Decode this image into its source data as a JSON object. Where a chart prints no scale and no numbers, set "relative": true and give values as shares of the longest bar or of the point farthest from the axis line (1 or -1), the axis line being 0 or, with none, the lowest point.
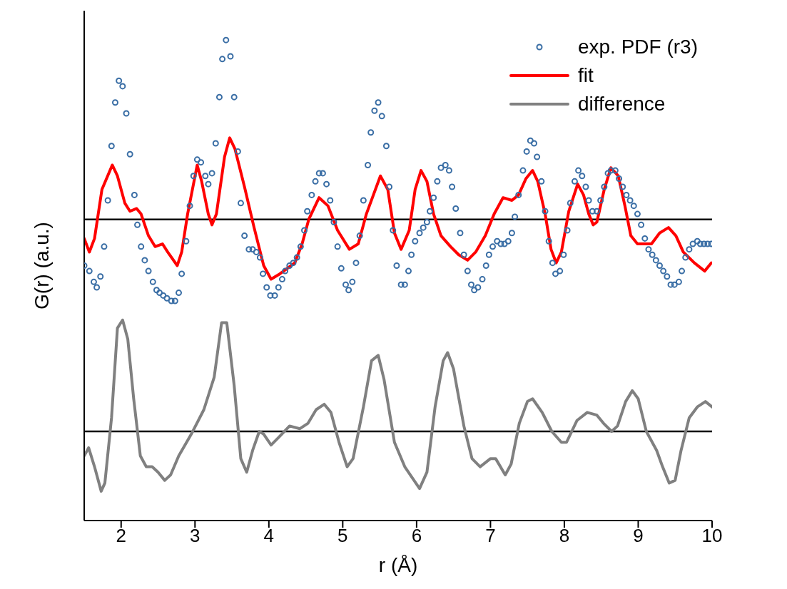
{
  "chart_data": {
    "type": "scatter",
    "relative": true,
    "xlabel": "r (Å)",
    "ylabel": "G(r) (a.u.)",
    "legend": "top right",
    "xlim": [
      1.5,
      10
    ],
    "xticks": [
      2,
      3,
      4,
      5,
      6,
      7,
      8,
      9,
      10
    ],
    "ref_lines": [
      {
        "axis": "y",
        "value": 0,
        "color": "#000000"
      },
      {
        "axis": "y",
        "value": -0.78,
        "color": "#000000"
      }
    ],
    "series": [
      {
        "name": "exp. PDF (r3)",
        "marker": "circle",
        "color": "#3a6ea5",
        "x": [
          1.5,
          1.57,
          1.63,
          1.67,
          1.72,
          1.77,
          1.82,
          1.87,
          1.92,
          1.97,
          2.02,
          2.07,
          2.12,
          2.18,
          2.22,
          2.27,
          2.32,
          2.37,
          2.43,
          2.48,
          2.52,
          2.57,
          2.62,
          2.68,
          2.73,
          2.78,
          2.82,
          2.88,
          2.93,
          2.98,
          3.03,
          3.08,
          3.14,
          3.18,
          3.23,
          3.28,
          3.33,
          3.37,
          3.42,
          3.48,
          3.53,
          3.58,
          3.62,
          3.67,
          3.73,
          3.78,
          3.83,
          3.88,
          3.92,
          3.97,
          4.02,
          4.08,
          4.13,
          4.18,
          4.22,
          4.28,
          4.33,
          4.38,
          4.43,
          4.48,
          4.52,
          4.58,
          4.63,
          4.68,
          4.73,
          4.78,
          4.83,
          4.88,
          4.93,
          4.98,
          5.04,
          5.08,
          5.13,
          5.18,
          5.23,
          5.28,
          5.34,
          5.38,
          5.43,
          5.48,
          5.53,
          5.59,
          5.63,
          5.68,
          5.73,
          5.79,
          5.84,
          5.89,
          5.93,
          5.98,
          6.04,
          6.09,
          6.14,
          6.18,
          6.23,
          6.28,
          6.33,
          6.39,
          6.44,
          6.48,
          6.53,
          6.59,
          6.64,
          6.69,
          6.74,
          6.78,
          6.83,
          6.89,
          6.94,
          6.98,
          7.03,
          7.09,
          7.14,
          7.19,
          7.24,
          7.29,
          7.33,
          7.38,
          7.44,
          7.49,
          7.54,
          7.59,
          7.63,
          7.69,
          7.74,
          7.79,
          7.84,
          7.88,
          7.94,
          7.99,
          8.04,
          8.08,
          8.14,
          8.19,
          8.24,
          8.29,
          8.33,
          8.38,
          8.44,
          8.49,
          8.54,
          8.59,
          8.63,
          8.69,
          8.74,
          8.79,
          8.84,
          8.89,
          8.94,
          8.99,
          9.04,
          9.09,
          9.14,
          9.19,
          9.24,
          9.29,
          9.34,
          9.39,
          9.44,
          9.49,
          9.55,
          9.59,
          9.64,
          9.69,
          9.74,
          9.8,
          9.84,
          9.89,
          9.94,
          9.99
        ],
        "values": [
          -0.17,
          -0.19,
          -0.23,
          -0.25,
          -0.21,
          -0.1,
          0.07,
          0.27,
          0.43,
          0.51,
          0.49,
          0.39,
          0.24,
          0.09,
          -0.02,
          -0.1,
          -0.15,
          -0.19,
          -0.23,
          -0.26,
          -0.27,
          -0.28,
          -0.29,
          -0.3,
          -0.3,
          -0.27,
          -0.2,
          -0.08,
          0.05,
          0.16,
          0.22,
          0.21,
          0.16,
          0.13,
          0.17,
          0.28,
          0.45,
          0.59,
          0.66,
          0.6,
          0.45,
          0.25,
          0.06,
          -0.06,
          -0.11,
          -0.11,
          -0.12,
          -0.14,
          -0.2,
          -0.25,
          -0.28,
          -0.28,
          -0.25,
          -0.22,
          -0.19,
          -0.17,
          -0.16,
          -0.14,
          -0.1,
          -0.04,
          0.03,
          0.09,
          0.14,
          0.17,
          0.17,
          0.13,
          0.07,
          -0.01,
          -0.1,
          -0.18,
          -0.24,
          -0.26,
          -0.23,
          -0.16,
          -0.06,
          0.07,
          0.2,
          0.32,
          0.4,
          0.43,
          0.38,
          0.27,
          0.12,
          -0.04,
          -0.17,
          -0.24,
          -0.24,
          -0.19,
          -0.13,
          -0.08,
          -0.05,
          -0.03,
          -0.01,
          0.03,
          0.08,
          0.14,
          0.19,
          0.2,
          0.18,
          0.12,
          0.04,
          -0.05,
          -0.13,
          -0.19,
          -0.24,
          -0.26,
          -0.25,
          -0.22,
          -0.17,
          -0.13,
          -0.1,
          -0.08,
          -0.09,
          -0.09,
          -0.08,
          -0.05,
          0.01,
          0.09,
          0.18,
          0.25,
          0.29,
          0.28,
          0.23,
          0.14,
          0.03,
          -0.08,
          -0.16,
          -0.2,
          -0.19,
          -0.13,
          -0.04,
          0.06,
          0.14,
          0.18,
          0.16,
          0.12,
          0.07,
          0.03,
          0.03,
          0.07,
          0.12,
          0.17,
          0.18,
          0.18,
          0.15,
          0.12,
          0.09,
          0.07,
          0.05,
          0.02,
          -0.02,
          -0.07,
          -0.11,
          -0.13,
          -0.15,
          -0.17,
          -0.19,
          -0.21,
          -0.24,
          -0.24,
          -0.23,
          -0.19,
          -0.14,
          -0.11,
          -0.09,
          -0.08,
          -0.09,
          -0.09,
          -0.09,
          -0.09
        ]
      },
      {
        "name": "fit",
        "type": "line",
        "marker": "none",
        "color": "#ff0000",
        "x": [
          1.5,
          1.57,
          1.64,
          1.74,
          1.88,
          1.95,
          2.05,
          2.12,
          2.21,
          2.27,
          2.37,
          2.46,
          2.56,
          2.63,
          2.76,
          2.82,
          2.9,
          3.03,
          3.09,
          3.18,
          3.23,
          3.29,
          3.4,
          3.47,
          3.54,
          3.67,
          3.8,
          3.93,
          4.03,
          4.15,
          4.25,
          4.35,
          4.45,
          4.54,
          4.68,
          4.8,
          4.93,
          5.09,
          5.21,
          5.32,
          5.51,
          5.61,
          5.7,
          5.79,
          5.9,
          5.98,
          6.06,
          6.14,
          6.23,
          6.33,
          6.46,
          6.57,
          6.69,
          6.8,
          6.93,
          7.05,
          7.17,
          7.29,
          7.38,
          7.48,
          7.57,
          7.64,
          7.74,
          7.82,
          7.89,
          7.96,
          8.06,
          8.18,
          8.26,
          8.33,
          8.39,
          8.44,
          8.54,
          8.63,
          8.73,
          8.82,
          8.9,
          8.99,
          9.18,
          9.29,
          9.41,
          9.51,
          9.61,
          9.76,
          9.9,
          9.99
        ],
        "values": [
          -0.07,
          -0.12,
          -0.07,
          0.11,
          0.2,
          0.16,
          0.06,
          0.03,
          0.04,
          0.02,
          -0.06,
          -0.1,
          -0.09,
          -0.12,
          -0.17,
          -0.12,
          0.02,
          0.2,
          0.14,
          0.02,
          -0.02,
          0.02,
          0.23,
          0.3,
          0.26,
          0.12,
          -0.03,
          -0.17,
          -0.22,
          -0.2,
          -0.18,
          -0.16,
          -0.09,
          0,
          0.08,
          0.05,
          -0.04,
          -0.11,
          -0.09,
          0.02,
          0.16,
          0.11,
          -0.05,
          -0.11,
          -0.04,
          0.11,
          0.18,
          0.14,
          0.02,
          -0.06,
          -0.1,
          -0.13,
          -0.15,
          -0.12,
          -0.06,
          0.02,
          0.08,
          0.07,
          0.09,
          0.15,
          0.18,
          0.14,
          0.02,
          -0.11,
          -0.16,
          -0.12,
          0.03,
          0.13,
          0.09,
          0.02,
          -0.02,
          -0.01,
          0.11,
          0.19,
          0.16,
          0.05,
          -0.06,
          -0.09,
          -0.09,
          -0.05,
          -0.03,
          -0.06,
          -0.12,
          -0.16,
          -0.19,
          -0.16
        ]
      },
      {
        "name": "difference",
        "type": "line",
        "marker": "none",
        "color": "#808080",
        "x": [
          1.5,
          1.56,
          1.64,
          1.73,
          1.78,
          1.87,
          1.95,
          2.02,
          2.09,
          2.17,
          2.26,
          2.34,
          2.42,
          2.5,
          2.59,
          2.67,
          2.78,
          2.95,
          3.12,
          3.26,
          3.36,
          3.43,
          3.53,
          3.62,
          3.7,
          3.78,
          3.87,
          3.93,
          4.03,
          4.14,
          4.28,
          4.42,
          4.53,
          4.64,
          4.75,
          4.84,
          4.95,
          5.06,
          5.14,
          5.28,
          5.39,
          5.48,
          5.56,
          5.7,
          5.84,
          5.94,
          6.04,
          6.14,
          6.25,
          6.36,
          6.42,
          6.5,
          6.64,
          6.75,
          6.86,
          7,
          7.07,
          7.2,
          7.28,
          7.39,
          7.5,
          7.57,
          7.7,
          7.83,
          7.96,
          8.03,
          8.17,
          8.31,
          8.44,
          8.53,
          8.64,
          8.72,
          8.83,
          8.92,
          9,
          9.11,
          9.25,
          9.33,
          9.42,
          9.5,
          9.58,
          9.69,
          9.8,
          9.91,
          10
        ],
        "values": [
          -0.87,
          -0.84,
          -0.91,
          -1,
          -0.97,
          -0.73,
          -0.4,
          -0.37,
          -0.44,
          -0.66,
          -0.87,
          -0.91,
          -0.91,
          -0.93,
          -0.96,
          -0.94,
          -0.87,
          -0.79,
          -0.7,
          -0.58,
          -0.38,
          -0.38,
          -0.61,
          -0.88,
          -0.93,
          -0.85,
          -0.78,
          -0.79,
          -0.83,
          -0.8,
          -0.76,
          -0.77,
          -0.75,
          -0.7,
          -0.68,
          -0.71,
          -0.82,
          -0.91,
          -0.88,
          -0.69,
          -0.52,
          -0.5,
          -0.59,
          -0.82,
          -0.91,
          -0.95,
          -0.99,
          -0.93,
          -0.69,
          -0.52,
          -0.49,
          -0.55,
          -0.76,
          -0.88,
          -0.91,
          -0.88,
          -0.88,
          -0.94,
          -0.9,
          -0.75,
          -0.67,
          -0.66,
          -0.71,
          -0.78,
          -0.82,
          -0.82,
          -0.74,
          -0.71,
          -0.72,
          -0.75,
          -0.78,
          -0.76,
          -0.67,
          -0.63,
          -0.66,
          -0.78,
          -0.85,
          -0.91,
          -0.97,
          -0.96,
          -0.85,
          -0.73,
          -0.69,
          -0.67,
          -0.69
        ]
      }
    ]
  }
}
